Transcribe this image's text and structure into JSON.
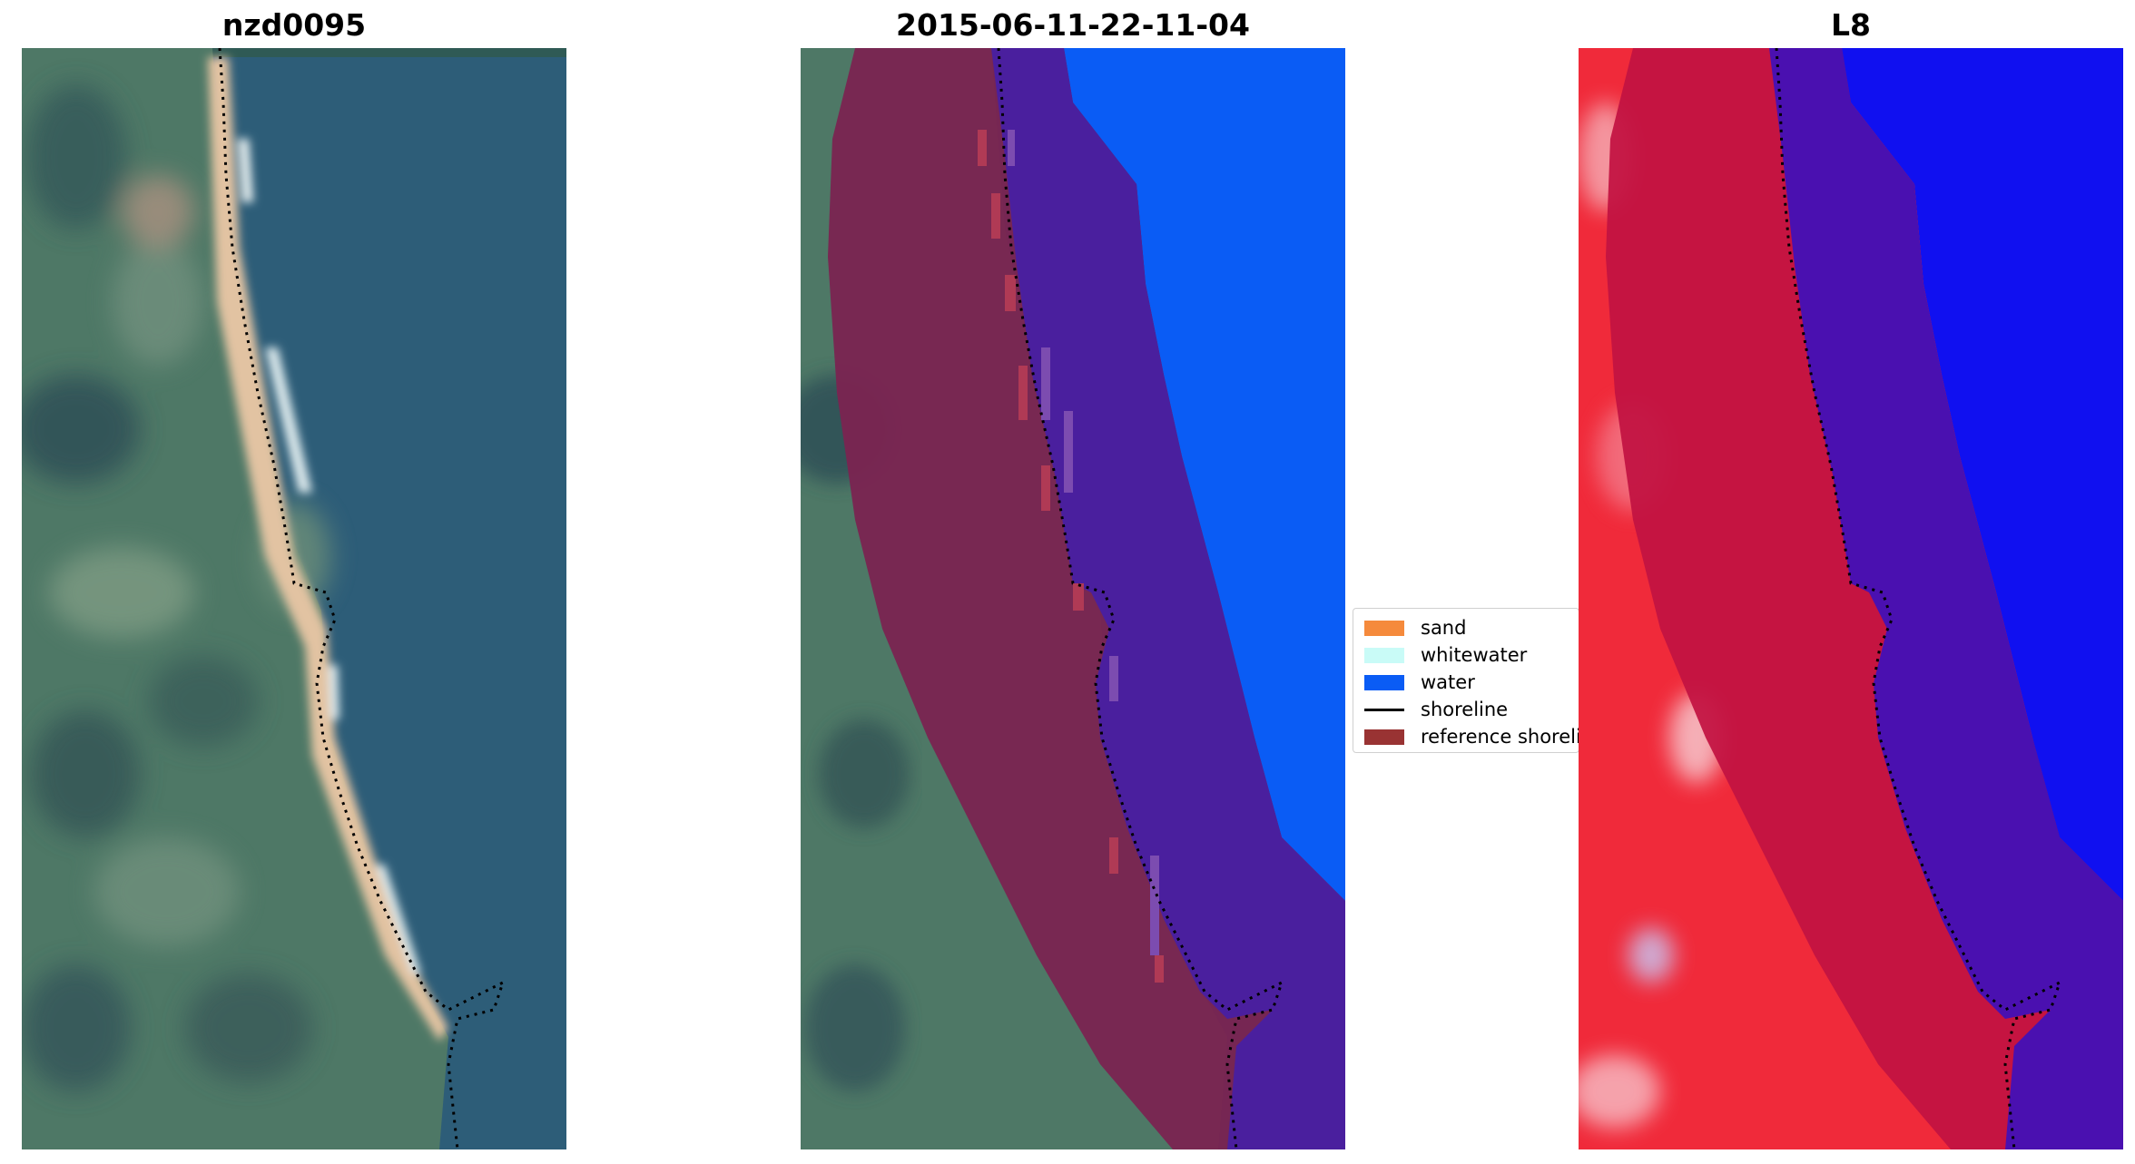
{
  "panels": [
    {
      "title": "nzd0095"
    },
    {
      "title": "2015-06-11-22-11-04"
    },
    {
      "title": "L8"
    }
  ],
  "legend": {
    "items": [
      {
        "label": "sand",
        "color": "#f58a3c"
      },
      {
        "label": "whitewater",
        "color": "#c9fbf7"
      },
      {
        "label": "water",
        "color": "#0a5cf5"
      },
      {
        "label": "shoreline",
        "color": "#000000"
      },
      {
        "label": "reference shoreline",
        "color": "#993333"
      }
    ]
  },
  "colors": {
    "rgb_water": "#2e5f7a",
    "rgb_land": "#4f7a68",
    "rgb_sand": "#e3c4a0",
    "buffer": "#7a2451",
    "classified_water": "#0a5cf5",
    "buffer_water": "#4a1f9e",
    "mndwi_land": "#f02a3a",
    "mndwi_buffer_land": "#c21242",
    "mndwi_water": "#1010f0",
    "mndwi_buffer_water": "#4a10b0"
  }
}
